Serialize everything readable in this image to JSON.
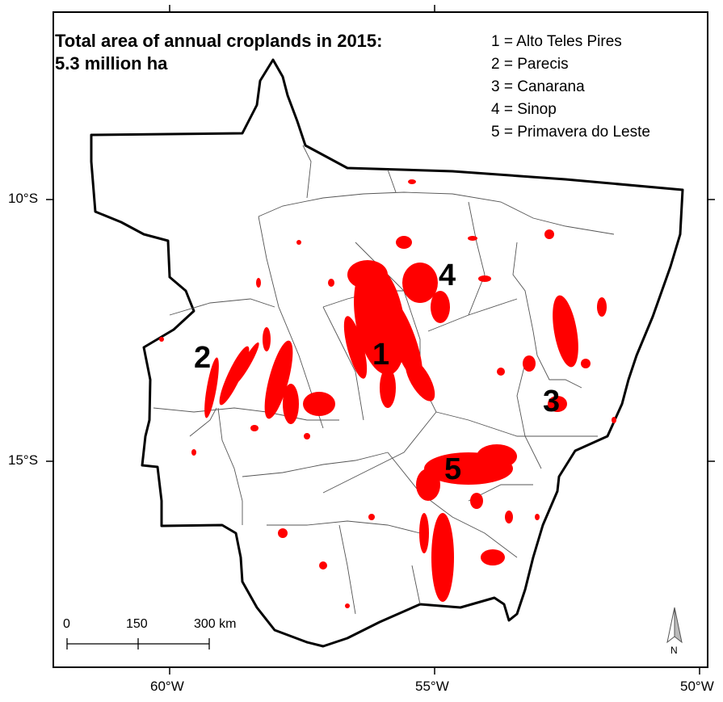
{
  "title": {
    "line1": "Total area of annual croplands in 2015:",
    "line2": "5.3 million ha"
  },
  "legend": [
    "1 = Alto Teles Pires",
    "2 = Parecis",
    "3 = Canarana",
    "4 = Sinop",
    "5 = Primavera do Leste"
  ],
  "latitude_labels": [
    "10°S",
    "15°S"
  ],
  "longitude_labels": [
    "60°W",
    "55°W",
    "50°W"
  ],
  "region_numbers": [
    "1",
    "2",
    "3",
    "4",
    "5"
  ],
  "scale_bar": {
    "ticks": [
      "0",
      "150",
      "300 km"
    ]
  },
  "north_arrow": {
    "label": "N"
  },
  "colors": {
    "cropland": "#ff0000",
    "boundary": "#000000",
    "subregion": "#555555",
    "background": "#ffffff"
  }
}
